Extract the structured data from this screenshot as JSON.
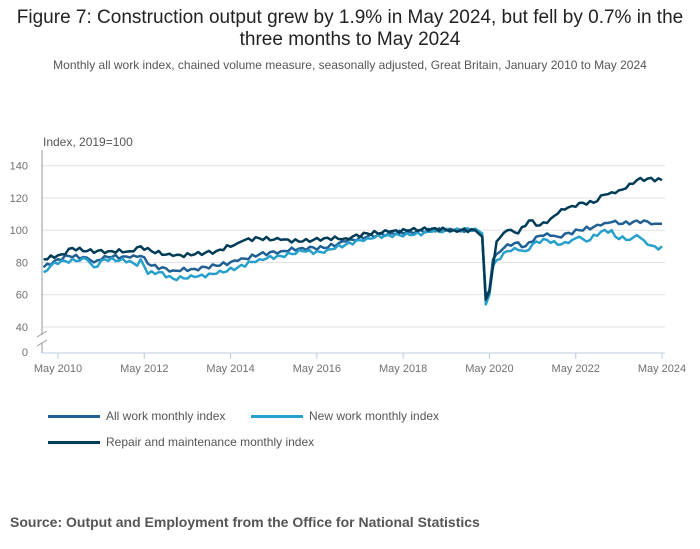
{
  "chart_data": {
    "type": "line",
    "title": "Figure 7: Construction output grew by 1.9% in May 2024, but fell by 0.7% in the three months to May 2024",
    "subtitle": "Monthly all work index, chained volume measure, seasonally adjusted, Great Britain, January 2010 to May 2024",
    "ylabel": "Index, 2019=100",
    "xlabel": "",
    "ylim": [
      0,
      150
    ],
    "yticks": [
      "0",
      "40",
      "60",
      "80",
      "100",
      "120",
      "140"
    ],
    "xticks": [
      "May 2010",
      "May 2012",
      "May 2014",
      "May 2016",
      "May 2018",
      "May 2020",
      "May 2022",
      "May 2024"
    ],
    "grid": true,
    "legend_position": "bottom-left",
    "series": [
      {
        "name": "All work monthly index",
        "color": "#206095",
        "points": [
          [
            "2010-01",
            77
          ],
          [
            "2010-04",
            81
          ],
          [
            "2010-08",
            84
          ],
          [
            "2011-01",
            83
          ],
          [
            "2011-03",
            80
          ],
          [
            "2011-06",
            84
          ],
          [
            "2012-01",
            83
          ],
          [
            "2012-04",
            84
          ],
          [
            "2012-07",
            78
          ],
          [
            "2013-01",
            75
          ],
          [
            "2013-07",
            76
          ],
          [
            "2014-01",
            78
          ],
          [
            "2014-07",
            81
          ],
          [
            "2015-01",
            85
          ],
          [
            "2015-07",
            87
          ],
          [
            "2016-01",
            89
          ],
          [
            "2016-07",
            89
          ],
          [
            "2017-01",
            93
          ],
          [
            "2017-07",
            96
          ],
          [
            "2018-01",
            98
          ],
          [
            "2018-07",
            99
          ],
          [
            "2019-01",
            100
          ],
          [
            "2019-07",
            100
          ],
          [
            "2020-01",
            100
          ],
          [
            "2020-03",
            97
          ],
          [
            "2020-04",
            58
          ],
          [
            "2020-05",
            63
          ],
          [
            "2020-06",
            82
          ],
          [
            "2020-09",
            89
          ],
          [
            "2020-12",
            92
          ],
          [
            "2021-03",
            90
          ],
          [
            "2021-06",
            96
          ],
          [
            "2021-09",
            98
          ],
          [
            "2021-12",
            96
          ],
          [
            "2022-06",
            100
          ],
          [
            "2022-12",
            103
          ],
          [
            "2023-03",
            105
          ],
          [
            "2023-06",
            104
          ],
          [
            "2023-12",
            106
          ],
          [
            "2024-03",
            104
          ],
          [
            "2024-05",
            104
          ]
        ]
      },
      {
        "name": "New work monthly index",
        "color": "#27a0cc",
        "points": [
          [
            "2010-01",
            74
          ],
          [
            "2010-04",
            80
          ],
          [
            "2011-01",
            82
          ],
          [
            "2011-03",
            77
          ],
          [
            "2011-06",
            82
          ],
          [
            "2012-01",
            81
          ],
          [
            "2012-03",
            78
          ],
          [
            "2012-04",
            82
          ],
          [
            "2012-06",
            73
          ],
          [
            "2012-09",
            74
          ],
          [
            "2013-01",
            70
          ],
          [
            "2013-07",
            71
          ],
          [
            "2014-01",
            73
          ],
          [
            "2014-07",
            77
          ],
          [
            "2015-01",
            82
          ],
          [
            "2015-07",
            84
          ],
          [
            "2016-01",
            87
          ],
          [
            "2016-07",
            86
          ],
          [
            "2016-08",
            88
          ],
          [
            "2017-01",
            91
          ],
          [
            "2017-07",
            95
          ],
          [
            "2018-01",
            97
          ],
          [
            "2018-07",
            97
          ],
          [
            "2019-01",
            99
          ],
          [
            "2019-07",
            100
          ],
          [
            "2020-01",
            101
          ],
          [
            "2020-03",
            98
          ],
          [
            "2020-04",
            54
          ],
          [
            "2020-05",
            60
          ],
          [
            "2020-06",
            78
          ],
          [
            "2020-09",
            86
          ],
          [
            "2020-12",
            89
          ],
          [
            "2021-03",
            87
          ],
          [
            "2021-06",
            93
          ],
          [
            "2021-09",
            94
          ],
          [
            "2021-12",
            91
          ],
          [
            "2022-03",
            92
          ],
          [
            "2022-06",
            96
          ],
          [
            "2022-08",
            93
          ],
          [
            "2022-12",
            99
          ],
          [
            "2023-03",
            100
          ],
          [
            "2023-04",
            96
          ],
          [
            "2023-08",
            94
          ],
          [
            "2023-10",
            97
          ],
          [
            "2024-01",
            91
          ],
          [
            "2024-03",
            90
          ],
          [
            "2024-04",
            88
          ],
          [
            "2024-05",
            90
          ]
        ]
      },
      {
        "name": "Repair and maintenance monthly index",
        "color": "#003c57",
        "points": [
          [
            "2010-01",
            82
          ],
          [
            "2010-06",
            85
          ],
          [
            "2010-09",
            89
          ],
          [
            "2011-01",
            87
          ],
          [
            "2011-07",
            87
          ],
          [
            "2012-01",
            87
          ],
          [
            "2012-04",
            90
          ],
          [
            "2012-07",
            87
          ],
          [
            "2013-01",
            84
          ],
          [
            "2013-07",
            85
          ],
          [
            "2014-01",
            87
          ],
          [
            "2014-07",
            92
          ],
          [
            "2014-09",
            94
          ],
          [
            "2015-01",
            95
          ],
          [
            "2015-07",
            94
          ],
          [
            "2016-01",
            93
          ],
          [
            "2016-07",
            95
          ],
          [
            "2017-01",
            95
          ],
          [
            "2017-07",
            98
          ],
          [
            "2018-01",
            99
          ],
          [
            "2018-07",
            100
          ],
          [
            "2019-01",
            101
          ],
          [
            "2019-07",
            100
          ],
          [
            "2020-01",
            100
          ],
          [
            "2020-03",
            96
          ],
          [
            "2020-04",
            57
          ],
          [
            "2020-05",
            62
          ],
          [
            "2020-07",
            93
          ],
          [
            "2020-10",
            100
          ],
          [
            "2021-01",
            98
          ],
          [
            "2021-04",
            106
          ],
          [
            "2021-07",
            103
          ],
          [
            "2021-10",
            107
          ],
          [
            "2022-01",
            113
          ],
          [
            "2022-04",
            115
          ],
          [
            "2022-07",
            117
          ],
          [
            "2022-10",
            117
          ],
          [
            "2023-01",
            122
          ],
          [
            "2023-04",
            123
          ],
          [
            "2023-07",
            126
          ],
          [
            "2023-10",
            131
          ],
          [
            "2024-01",
            132
          ],
          [
            "2024-05",
            131
          ]
        ]
      }
    ]
  },
  "source": "Source: Output and Employment from the Office for National Statistics"
}
